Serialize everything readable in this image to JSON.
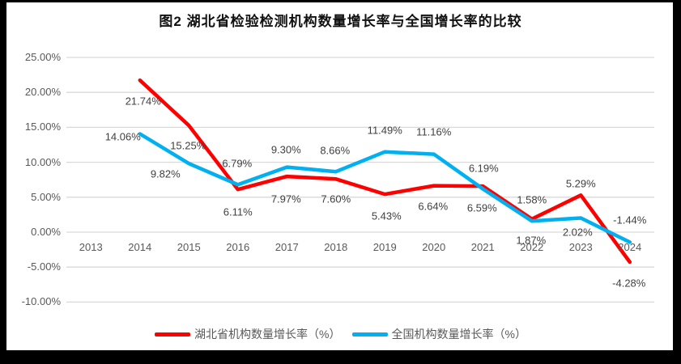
{
  "title": "图2 湖北省检验检测机构数量增长率与全国增长率的比较",
  "colors": {
    "background": "#FFFFFF",
    "frame_border": "#000000",
    "gridline": "#D9D9D9",
    "tick_text": "#595959",
    "data_label_text": "#404040",
    "series_hubei": "#FF0000",
    "series_national": "#00B0F0"
  },
  "chart_data": {
    "type": "line",
    "title": "图2 湖北省检验检测机构数量增长率与全国增长率的比较",
    "categories": [
      "2013",
      "2014",
      "2015",
      "2016",
      "2017",
      "2018",
      "2019",
      "2020",
      "2021",
      "2022",
      "2023",
      "2024"
    ],
    "series": [
      {
        "name": "湖北省机构数量增长率（%）",
        "color": "#FF0000",
        "values": [
          null,
          21.74,
          15.25,
          6.11,
          7.97,
          7.6,
          5.43,
          6.64,
          6.59,
          1.87,
          5.29,
          -4.28
        ],
        "labels": [
          null,
          "21.74%",
          "15.25%",
          "6.11%",
          "7.97%",
          "7.60%",
          "5.43%",
          "6.64%",
          "6.59%",
          "1.87%",
          "5.29%",
          "-4.28%"
        ]
      },
      {
        "name": "全国机构数量增长率（%）",
        "color": "#00B0F0",
        "values": [
          null,
          14.06,
          9.82,
          6.79,
          9.3,
          8.66,
          11.49,
          11.16,
          6.19,
          1.58,
          2.02,
          -1.44
        ],
        "labels": [
          null,
          "14.06%",
          "9.82%",
          "6.79%",
          "9.30%",
          "8.66%",
          "11.49%",
          "11.16%",
          "6.19%",
          "1.58%",
          "2.02%",
          "-1.44%"
        ]
      }
    ],
    "y_ticks": [
      {
        "label": "25.00%",
        "value": 25
      },
      {
        "label": "20.00%",
        "value": 20
      },
      {
        "label": "15.00%",
        "value": 15
      },
      {
        "label": "10.00%",
        "value": 10
      },
      {
        "label": "5.00%",
        "value": 5
      },
      {
        "label": "0.00%",
        "value": 0
      },
      {
        "label": "-5.00%",
        "value": -5
      },
      {
        "label": "-10.00%",
        "value": -10
      }
    ],
    "ylim": [
      -10,
      25
    ],
    "grid": true,
    "legend_position": "bottom",
    "data_labels_shown": true
  }
}
